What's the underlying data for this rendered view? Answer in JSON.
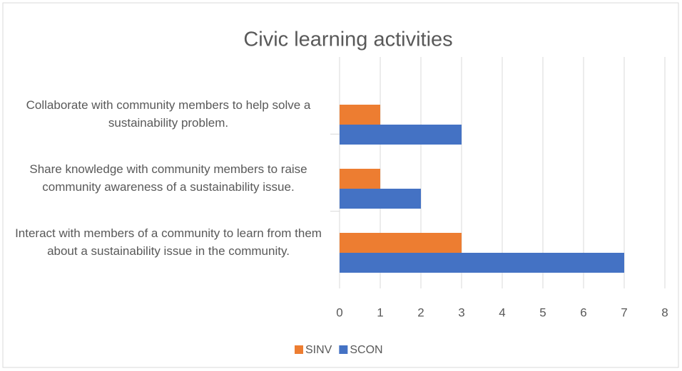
{
  "chart_data": {
    "type": "hbar",
    "title": "Civic learning activities",
    "categories": [
      "Collaborate with community members to help solve a sustainability problem.",
      "Share knowledge with community members to raise community awareness of a sustainability issue.",
      "Interact with members of a community to learn from them about a sustainability issue in the community."
    ],
    "series": [
      {
        "name": "SINV",
        "color": "#ed7d31",
        "values": [
          1,
          1,
          3
        ]
      },
      {
        "name": "SCON",
        "color": "#4472c4",
        "values": [
          3,
          2,
          7
        ]
      }
    ],
    "xlim": [
      0,
      8
    ],
    "xticks": [
      0,
      1,
      2,
      3,
      4,
      5,
      6,
      7,
      8
    ],
    "grid": true,
    "legend": "bottom"
  }
}
